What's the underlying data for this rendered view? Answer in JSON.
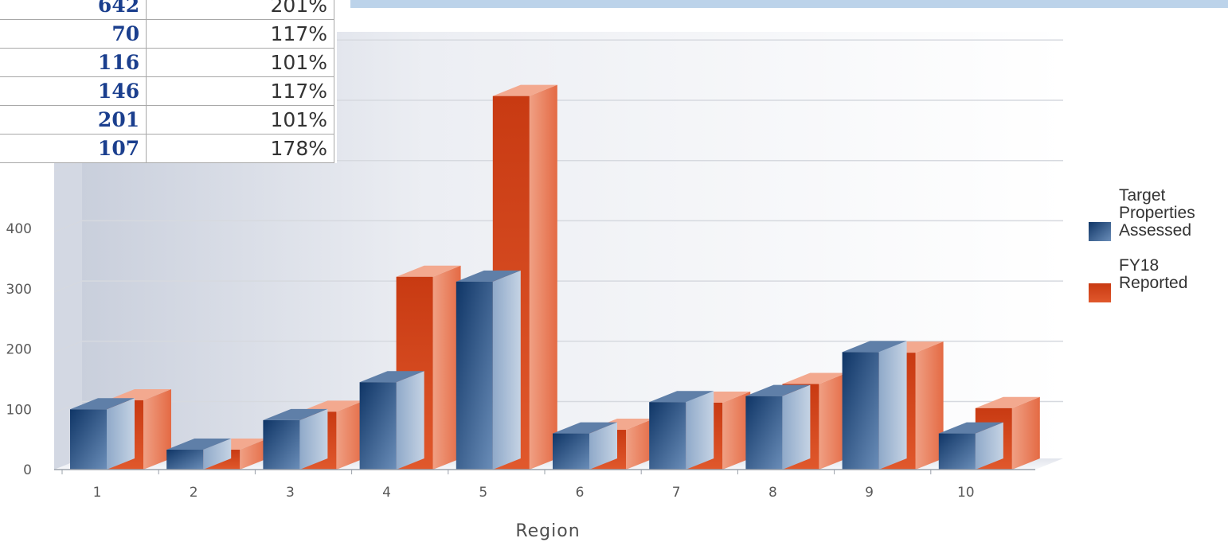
{
  "table": {
    "rows": [
      {
        "count": "642",
        "percent": "201%"
      },
      {
        "count": "70",
        "percent": "117%"
      },
      {
        "count": "116",
        "percent": "101%"
      },
      {
        "count": "146",
        "percent": "117%"
      },
      {
        "count": "201",
        "percent": "101%"
      },
      {
        "count": "107",
        "percent": "178%"
      }
    ]
  },
  "chart_data": {
    "type": "bar",
    "categories": [
      "1",
      "2",
      "3",
      "4",
      "5",
      "6",
      "7",
      "8",
      "9",
      "10"
    ],
    "series": [
      {
        "name": "Target Properties Assessed",
        "values": [
          100,
          33,
          82,
          145,
          312,
          60,
          112,
          122,
          195,
          60
        ],
        "color": "#1f4a7d"
      },
      {
        "name": "FY18 Reported",
        "values": [
          115,
          33,
          96,
          320,
          620,
          66,
          111,
          142,
          194,
          102
        ],
        "color": "#d9461c"
      }
    ],
    "xlabel": "Region",
    "ylabel": "",
    "yticks": [
      0,
      100,
      200,
      300,
      400
    ],
    "ylim": [
      0,
      700
    ],
    "grid": true,
    "legend_position": "right",
    "legend": [
      {
        "lines": [
          "Target",
          "Properties",
          "Assessed"
        ]
      },
      {
        "lines": [
          "FY18",
          "Reported"
        ]
      }
    ]
  }
}
